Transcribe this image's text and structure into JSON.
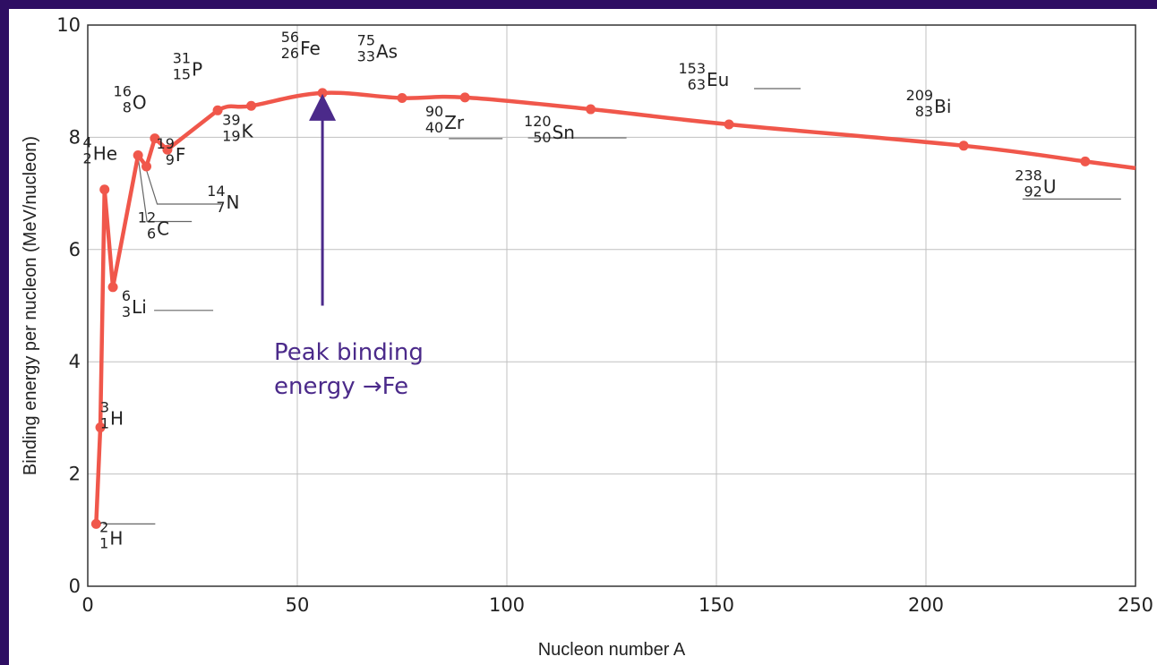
{
  "colors": {
    "background": "#2e0e63",
    "curve": "#f0574b",
    "callout": "#4b2a8a",
    "grid": "#c0c0c0"
  },
  "chart_data": {
    "type": "line",
    "title": "",
    "xlabel": "Nucleon number A",
    "ylabel": "Binding energy per nucleon (MeV/nucleon)",
    "xlim": [
      0,
      250
    ],
    "ylim": [
      0,
      10
    ],
    "xticks": [
      "0",
      "50",
      "100",
      "150",
      "200",
      "250"
    ],
    "yticks": [
      "0",
      "2",
      "4",
      "6",
      "8",
      "10"
    ],
    "grid": true,
    "curve": {
      "x": [
        2,
        3,
        4,
        6,
        12,
        14,
        16,
        19,
        31,
        39,
        56,
        75,
        90,
        120,
        153,
        209,
        238,
        250
      ],
      "y": [
        1.11,
        2.83,
        7.07,
        5.33,
        7.68,
        7.48,
        7.98,
        7.78,
        8.48,
        8.56,
        8.79,
        8.7,
        8.71,
        8.5,
        8.23,
        7.85,
        7.57,
        7.45
      ]
    },
    "points": [
      {
        "symbol": "H",
        "A": "2",
        "Z": "1",
        "x": 2,
        "y": 1.11
      },
      {
        "symbol": "H",
        "A": "3",
        "Z": "1",
        "x": 3,
        "y": 2.83
      },
      {
        "symbol": "He",
        "A": "4",
        "Z": "2",
        "x": 4,
        "y": 7.07
      },
      {
        "symbol": "Li",
        "A": "6",
        "Z": "3",
        "x": 6,
        "y": 5.33
      },
      {
        "symbol": "C",
        "A": "12",
        "Z": "6",
        "x": 12,
        "y": 7.68
      },
      {
        "symbol": "N",
        "A": "14",
        "Z": "7",
        "x": 14,
        "y": 7.48
      },
      {
        "symbol": "O",
        "A": "16",
        "Z": "8",
        "x": 16,
        "y": 7.98
      },
      {
        "symbol": "F",
        "A": "19",
        "Z": "9",
        "x": 19,
        "y": 7.78
      },
      {
        "symbol": "P",
        "A": "31",
        "Z": "15",
        "x": 31,
        "y": 8.48
      },
      {
        "symbol": "K",
        "A": "39",
        "Z": "19",
        "x": 39,
        "y": 8.56
      },
      {
        "symbol": "Fe",
        "A": "56",
        "Z": "26",
        "x": 56,
        "y": 8.79
      },
      {
        "symbol": "As",
        "A": "75",
        "Z": "33",
        "x": 75,
        "y": 8.7
      },
      {
        "symbol": "Zr",
        "A": "90",
        "Z": "40",
        "x": 90,
        "y": 8.71
      },
      {
        "symbol": "Sn",
        "A": "120",
        "Z": "50",
        "x": 120,
        "y": 8.5
      },
      {
        "symbol": "Eu",
        "A": "153",
        "Z": "63",
        "x": 153,
        "y": 8.23
      },
      {
        "symbol": "Bi",
        "A": "209",
        "Z": "83",
        "x": 209,
        "y": 7.85
      },
      {
        "symbol": "U",
        "A": "238",
        "Z": "92",
        "x": 238,
        "y": 7.57
      }
    ],
    "annotation": {
      "lines": [
        "Peak binding",
        "energy →Fe"
      ],
      "arrow_target": {
        "x": 56,
        "y": 8.79
      },
      "arrow_tail": {
        "x": 56,
        "y": 5.0
      }
    }
  }
}
